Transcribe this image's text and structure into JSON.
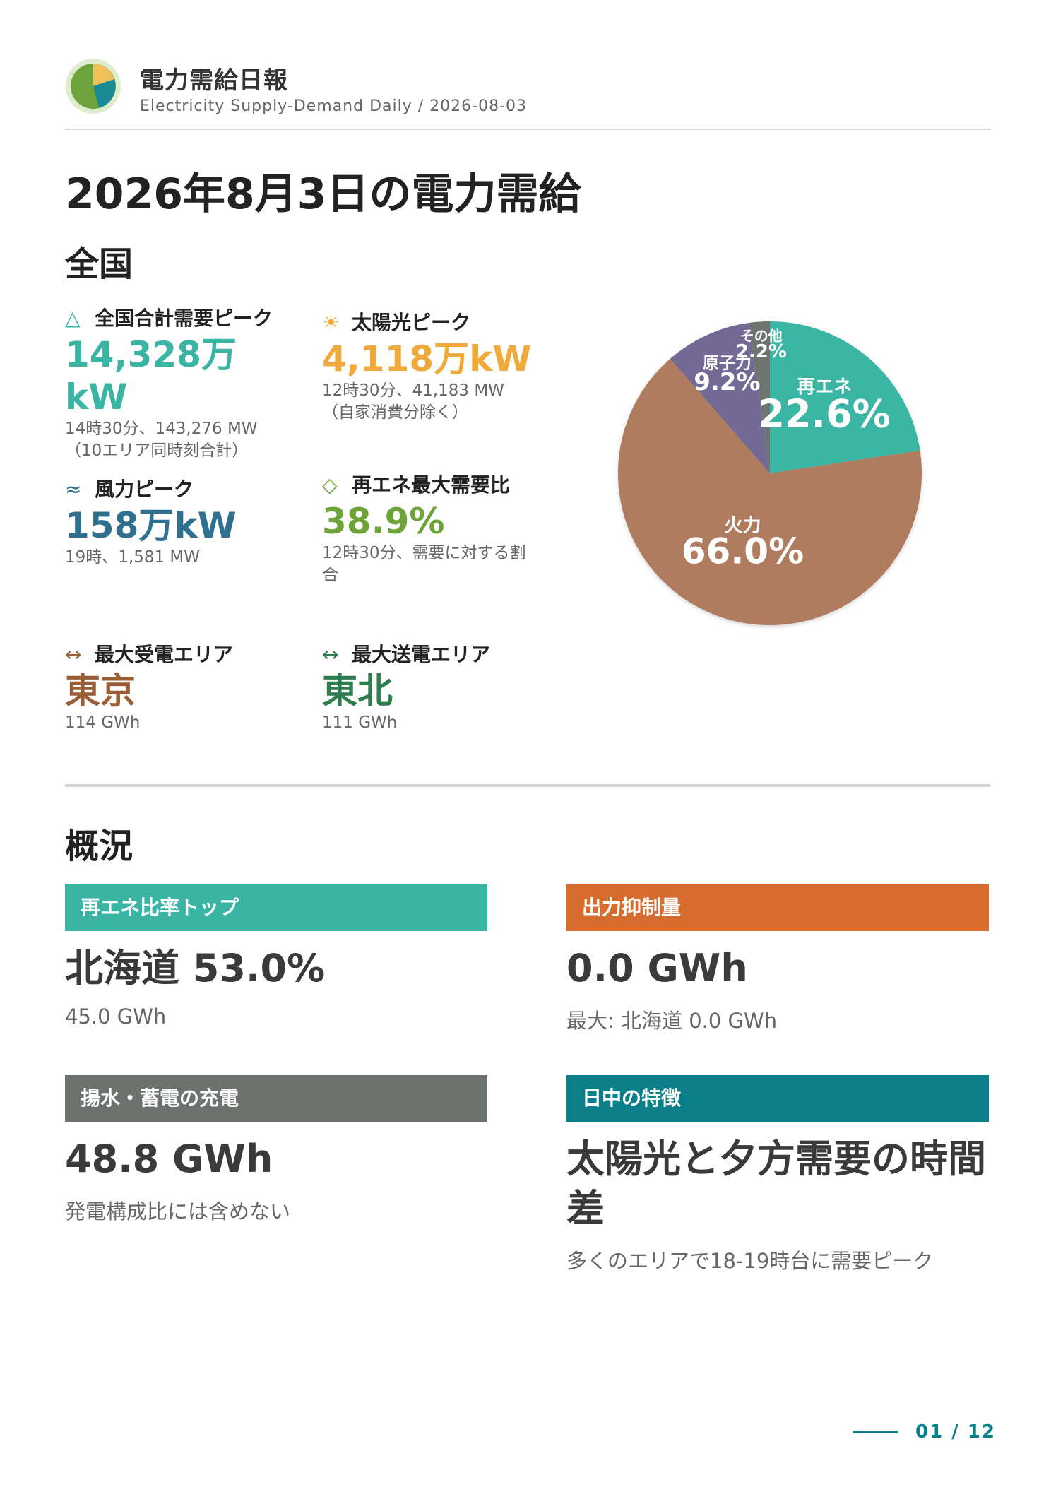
{
  "header": {
    "title": "電力需給日報",
    "subtitle": "Electricity Supply-Demand Daily / 2026-08-03"
  },
  "page_title": "2026年8月3日の電力需給",
  "national": {
    "section_title": "全国",
    "kpis": [
      {
        "icon": "triangle-icon",
        "glyph": "△",
        "label": "全国合計需要ピーク",
        "value": "14,328万kW",
        "note": "14時30分、143,276 MW（10エリア同時刻合計）",
        "color": "#3ab5a4"
      },
      {
        "icon": "sun-icon",
        "glyph": "☀",
        "label": "太陽光ピーク",
        "value": "4,118万kW",
        "note": "12時30分、41,183 MW（自家消費分除く）",
        "color": "#f0a93b"
      },
      {
        "icon": "wind-icon",
        "glyph": "≈",
        "label": "風力ピーク",
        "value": "158万kW",
        "note": "19時、1,581 MW",
        "color": "#2f6f8f"
      },
      {
        "icon": "diamond-icon",
        "glyph": "◇",
        "label": "再エネ最大需要比",
        "value": "38.9%",
        "note": "12時30分、需要に対する割合",
        "color": "#6ea23a"
      },
      {
        "icon": "arrows-icon",
        "glyph": "↔",
        "label": "最大受電エリア",
        "value": "東京",
        "note": "114 GWh",
        "color": "#9a5e36"
      },
      {
        "icon": "arrows-icon",
        "glyph": "↔",
        "label": "最大送電エリア",
        "value": "東北",
        "note": "111 GWh",
        "color": "#2e7d4f"
      }
    ]
  },
  "chart_data": {
    "type": "pie",
    "slices": [
      {
        "label": "再エネ",
        "value": 22.6,
        "display": "22.6%",
        "color": "#3ab5a4"
      },
      {
        "label": "火力",
        "value": 66.0,
        "display": "66.0%",
        "color": "#b07b60"
      },
      {
        "label": "原子力",
        "value": 9.2,
        "display": "9.2%",
        "color": "#726a95"
      },
      {
        "label": "その他",
        "value": 2.2,
        "display": "2.2%",
        "color": "#6e7570"
      }
    ]
  },
  "overview": {
    "section_title": "概況",
    "cards": [
      {
        "title": "再エネ比率トップ",
        "value": "北海道 53.0%",
        "note": "45.0 GWh",
        "color": "#3ab5a4"
      },
      {
        "title": "出力抑制量",
        "value": "0.0 GWh",
        "note": "最大: 北海道 0.0 GWh",
        "color": "#d66d2f"
      },
      {
        "title": "揚水・蓄電の充電",
        "value": "48.8 GWh",
        "note": "発電構成比には含めない",
        "color": "#6c736e"
      },
      {
        "title": "日中の特徴",
        "value": "太陽光と夕方需要の時間差",
        "note": "多くのエリアで18-19時台に需要ピーク",
        "color": "#0a7f8a"
      }
    ]
  },
  "pager": "01 / 12"
}
